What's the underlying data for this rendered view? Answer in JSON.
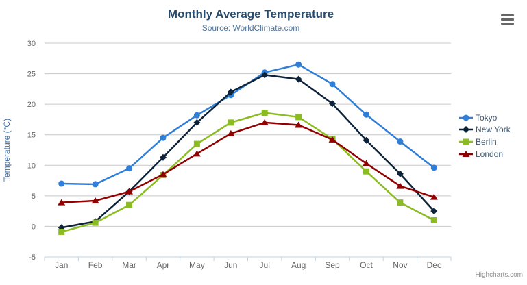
{
  "chart_data": {
    "type": "line",
    "title": "Monthly Average Temperature",
    "subtitle": "Source: WorldClimate.com",
    "xlabel": "",
    "ylabel": "Temperature (°C)",
    "categories": [
      "Jan",
      "Feb",
      "Mar",
      "Apr",
      "May",
      "Jun",
      "Jul",
      "Aug",
      "Sep",
      "Oct",
      "Nov",
      "Dec"
    ],
    "ylim": [
      -5,
      30
    ],
    "yticks": [
      -5,
      0,
      5,
      10,
      15,
      20,
      25,
      30
    ],
    "grid": true,
    "legend_position": "right",
    "series": [
      {
        "name": "Tokyo",
        "color": "#2f7ed8",
        "marker": "circle",
        "values": [
          7.0,
          6.9,
          9.5,
          14.5,
          18.2,
          21.5,
          25.2,
          26.5,
          23.3,
          18.3,
          13.9,
          9.6
        ]
      },
      {
        "name": "New York",
        "color": "#0d233a",
        "marker": "diamond",
        "values": [
          -0.2,
          0.8,
          5.7,
          11.3,
          17.0,
          22.0,
          24.8,
          24.1,
          20.1,
          14.1,
          8.6,
          2.5
        ]
      },
      {
        "name": "Berlin",
        "color": "#8bbc21",
        "marker": "square",
        "values": [
          -0.9,
          0.6,
          3.5,
          8.4,
          13.5,
          17.0,
          18.6,
          17.9,
          14.3,
          9.0,
          3.9,
          1.0
        ]
      },
      {
        "name": "London",
        "color": "#910000",
        "marker": "triangle",
        "values": [
          3.9,
          4.2,
          5.7,
          8.5,
          11.9,
          15.2,
          17.0,
          16.6,
          14.2,
          10.3,
          6.6,
          4.8
        ]
      }
    ]
  },
  "toolbar": {
    "export_menu_icon": "hamburger-icon"
  },
  "credits": {
    "label": "Highcharts.com"
  },
  "colors": {
    "title": "#274b6d",
    "subtitle": "#4d759e",
    "axis_labels": "#666666",
    "y_axis_title": "#4572a7",
    "gridline": "#c8c8c8",
    "axis_line": "#c0d0e0",
    "legend_text": "#3e576f",
    "credits_text": "#909090"
  }
}
